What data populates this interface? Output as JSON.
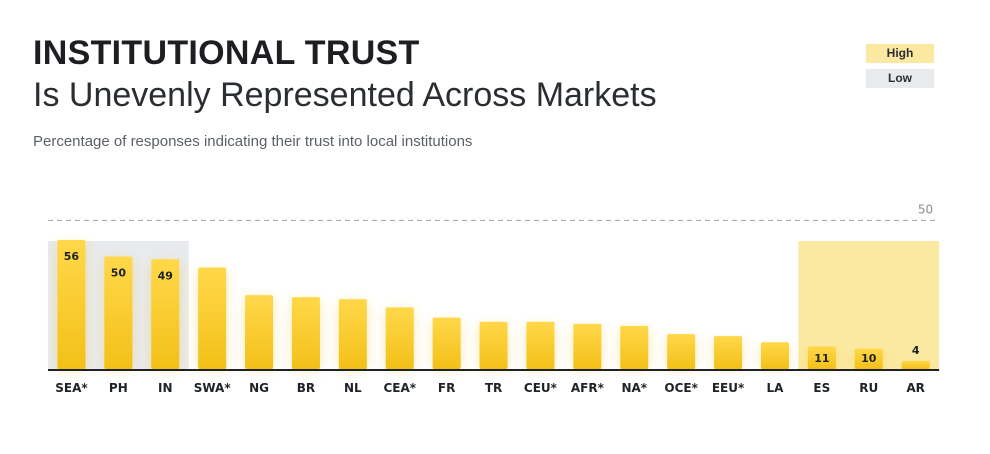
{
  "header": {
    "title": "INSTITUTIONAL TRUST",
    "subtitle": "Is Unevenly Represented Across Markets",
    "description": "Percentage of responses indicating their trust into local institutions"
  },
  "legend": {
    "high": "High",
    "low": "Low"
  },
  "colors": {
    "bar": "#f3c018",
    "bar_top": "#ffd84a",
    "high_highlight": "#fbe9a2",
    "low_highlight": "#e8eaed",
    "reference_line": "#9aa0a6"
  },
  "chart_data": {
    "type": "bar",
    "categories": [
      "SEA*",
      "PH",
      "IN",
      "SWA*",
      "NG",
      "BR",
      "NL",
      "CEA*",
      "FR",
      "TR",
      "CEU*",
      "AFR*",
      "NA*",
      "OCE*",
      "EEU*",
      "LA",
      "ES",
      "RU",
      "AR"
    ],
    "values": [
      56,
      50,
      49,
      46,
      36,
      35,
      34,
      30,
      25,
      23,
      23,
      22,
      21,
      17,
      16,
      13,
      11,
      10,
      4
    ],
    "labeled_values": {
      "SEA*": "56",
      "PH": "50",
      "IN": "49",
      "ES": "11",
      "RU": "10",
      "AR": "4"
    },
    "reference_line": {
      "value": 50,
      "label": "50"
    },
    "highlight_low_group": [
      "SEA*",
      "PH",
      "IN"
    ],
    "highlight_high_group": [
      "ES",
      "RU",
      "AR"
    ],
    "ylim": [
      0,
      60
    ],
    "grid": false,
    "legend_position": "top-right"
  }
}
